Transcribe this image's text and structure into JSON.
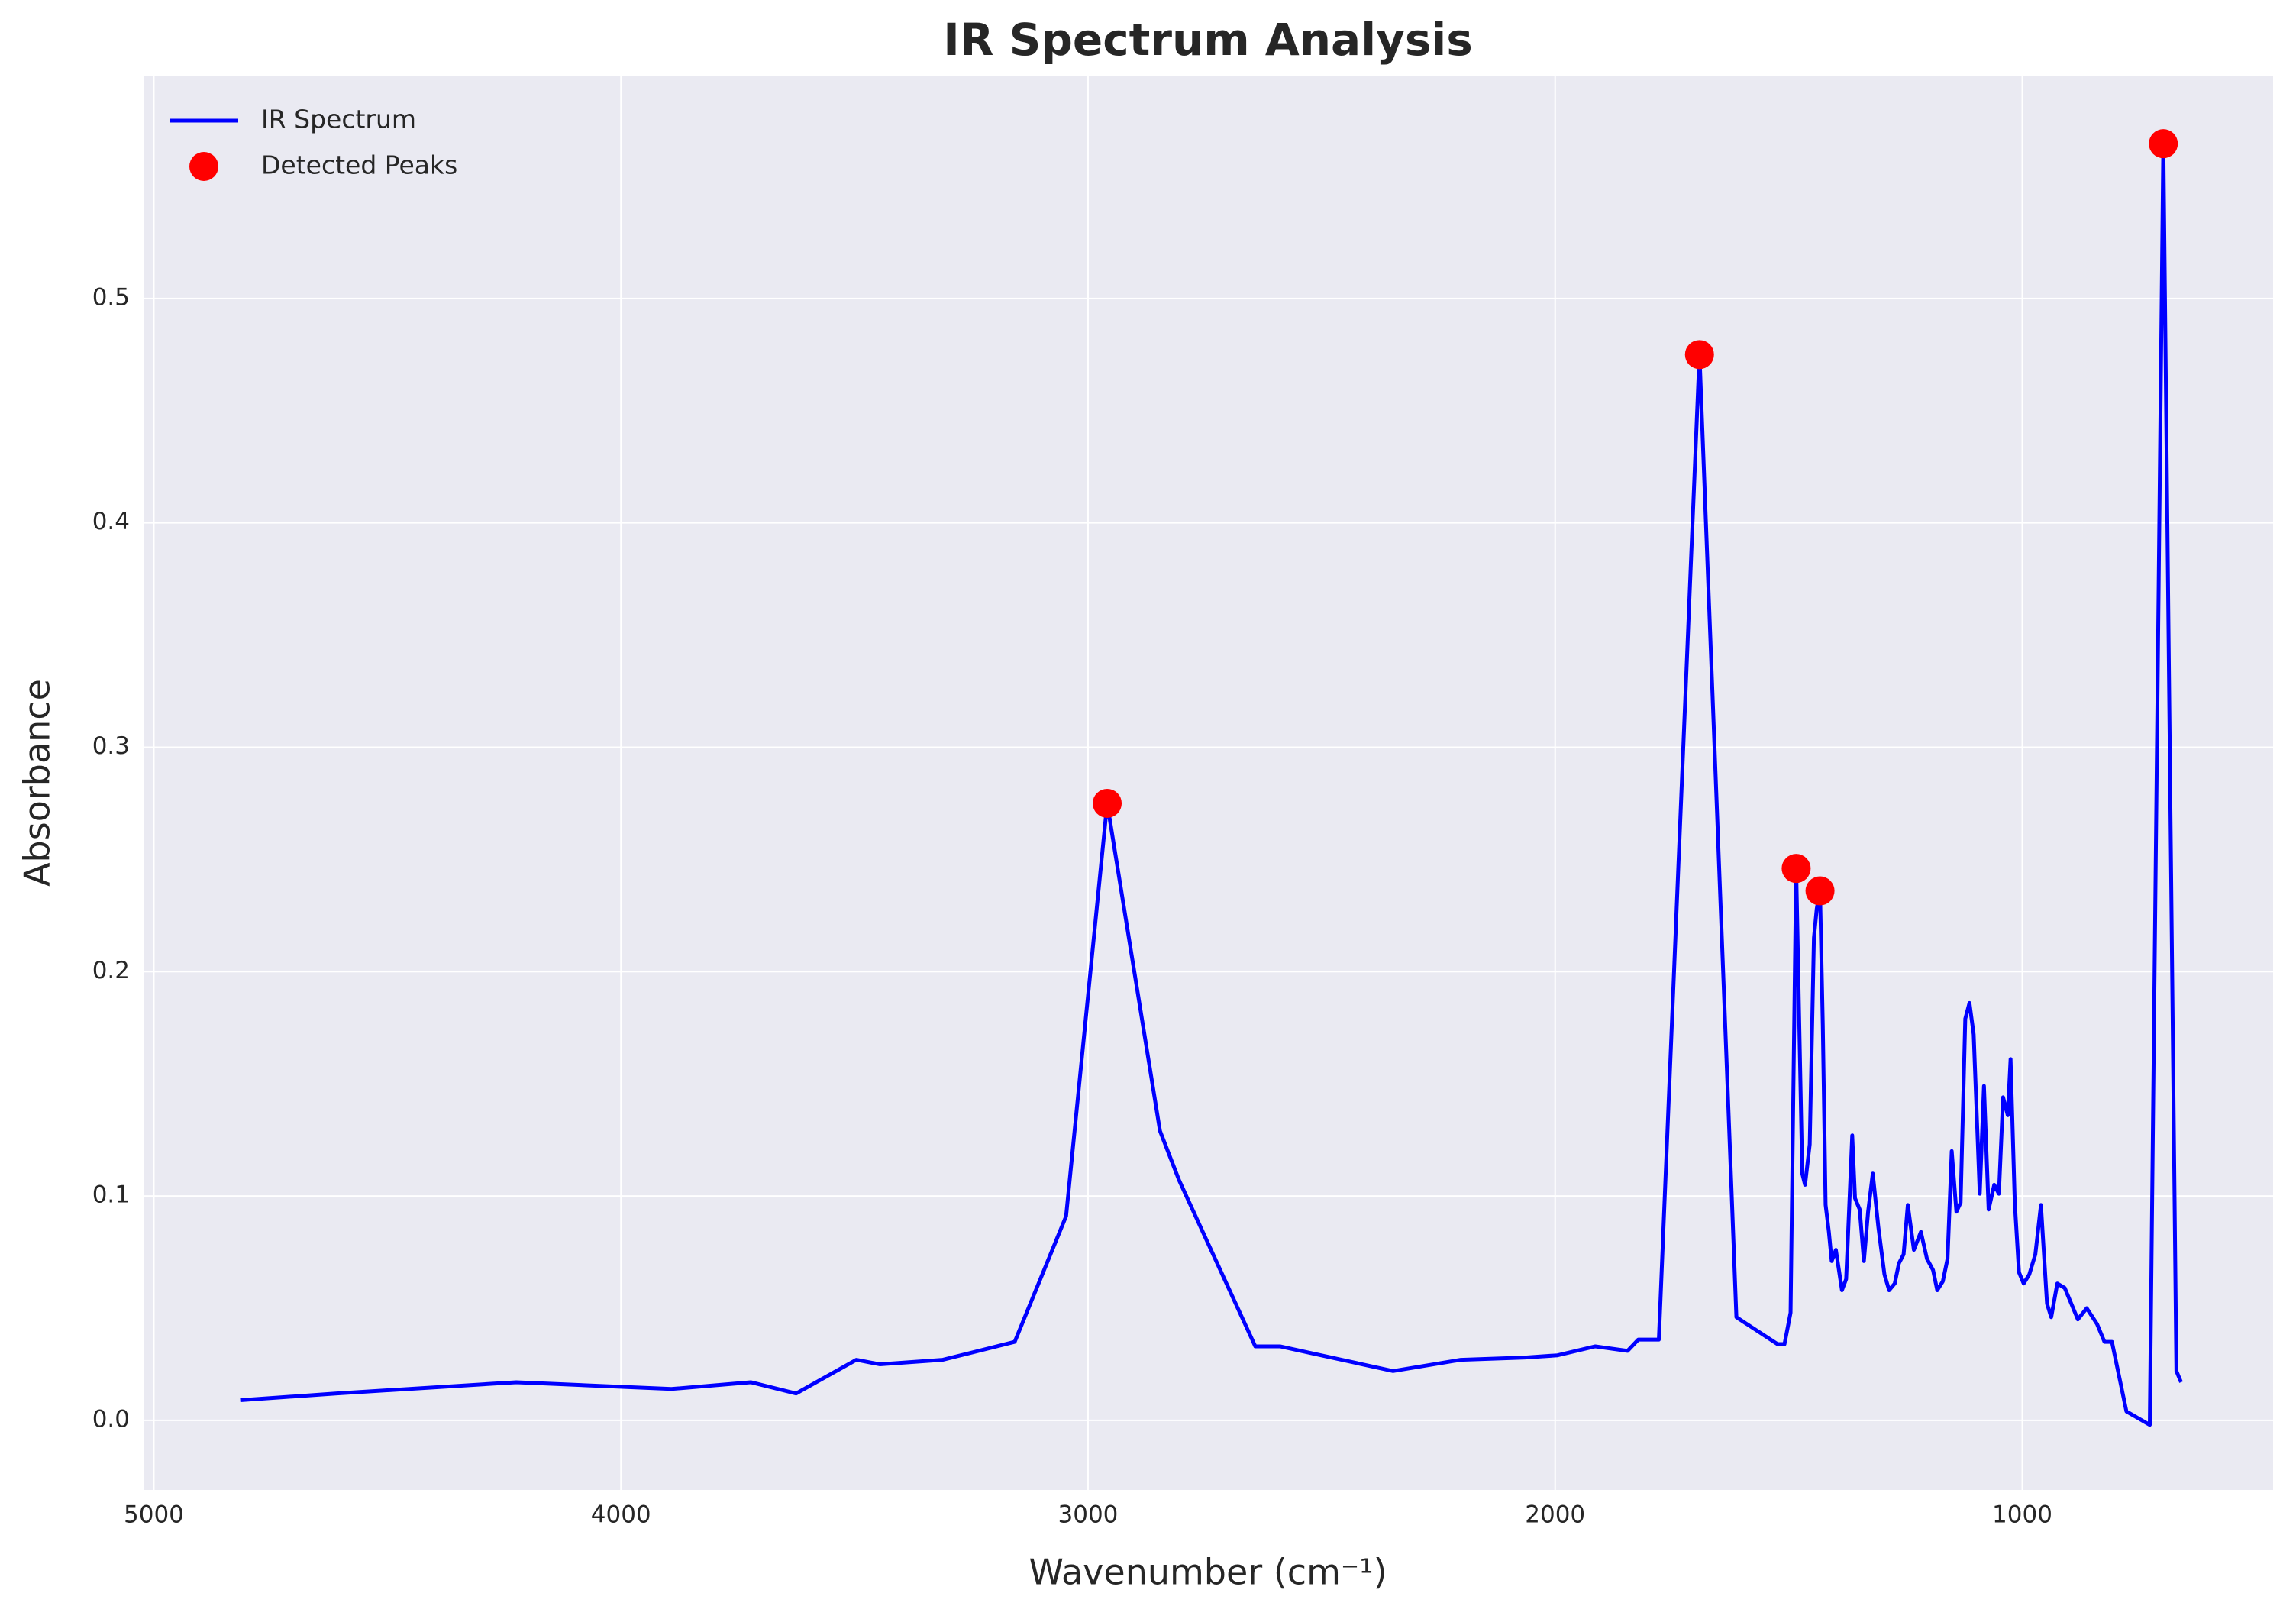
{
  "chart_data": {
    "type": "line",
    "title": "IR Spectrum Analysis",
    "x_label": "Wavenumber (cm⁻¹)",
    "y_label": "Absorbance",
    "xlim": [
      5022,
      463
    ],
    "ylim": [
      -0.031,
      0.599
    ],
    "xticks": [
      5000,
      4000,
      3000,
      2000,
      1000
    ],
    "yticks": [
      {
        "value": 0,
        "label": "0.0"
      },
      0.1,
      0.2,
      0.3,
      0.4,
      0.5
    ],
    "grid": true,
    "legend": "upper left",
    "series": [
      {
        "name": "IR Spectrum",
        "color": "#0000ff",
        "kind": "line",
        "x": [
          4815,
          4608,
          4224,
          3892,
          3722,
          3625,
          3496,
          3446,
          3311,
          3157,
          3047,
          2959,
          2846,
          2805,
          2642,
          2589,
          2347,
          2202,
          2064,
          1995,
          1914,
          1845,
          1822,
          1778,
          1691,
          1612,
          1524,
          1509,
          1496,
          1484,
          1471,
          1465,
          1455,
          1446,
          1440,
          1433,
          1427,
          1421,
          1414,
          1408,
          1399,
          1386,
          1377,
          1364,
          1358,
          1348,
          1339,
          1330,
          1320,
          1308,
          1295,
          1285,
          1273,
          1264,
          1254,
          1245,
          1232,
          1217,
          1204,
          1191,
          1182,
          1170,
          1160,
          1151,
          1141,
          1132,
          1122,
          1113,
          1104,
          1091,
          1082,
          1072,
          1060,
          1050,
          1041,
          1031,
          1025,
          1016,
          1007,
          997,
          985,
          972,
          960,
          947,
          938,
          925,
          909,
          897,
          881,
          862,
          840,
          824,
          808,
          777,
          752,
          727,
          698,
          670,
          660
        ],
        "values": [
          0.009,
          0.012,
          0.017,
          0.014,
          0.017,
          0.012,
          0.027,
          0.025,
          0.027,
          0.035,
          0.091,
          0.275,
          0.129,
          0.107,
          0.033,
          0.033,
          0.022,
          0.027,
          0.028,
          0.029,
          0.033,
          0.031,
          0.036,
          0.036,
          0.475,
          0.046,
          0.034,
          0.034,
          0.048,
          0.246,
          0.11,
          0.105,
          0.123,
          0.215,
          0.228,
          0.236,
          0.176,
          0.096,
          0.084,
          0.071,
          0.076,
          0.058,
          0.063,
          0.127,
          0.099,
          0.094,
          0.071,
          0.093,
          0.11,
          0.086,
          0.065,
          0.058,
          0.061,
          0.07,
          0.074,
          0.096,
          0.076,
          0.084,
          0.072,
          0.067,
          0.058,
          0.062,
          0.072,
          0.12,
          0.093,
          0.097,
          0.179,
          0.186,
          0.172,
          0.101,
          0.149,
          0.094,
          0.105,
          0.101,
          0.144,
          0.136,
          0.161,
          0.097,
          0.066,
          0.061,
          0.065,
          0.074,
          0.096,
          0.052,
          0.046,
          0.061,
          0.059,
          0.053,
          0.045,
          0.05,
          0.043,
          0.035,
          0.035,
          0.004,
          0.001,
          -0.002,
          0.569,
          0.022,
          0.017
        ]
      },
      {
        "name": "Detected Peaks",
        "color": "#ff0000",
        "kind": "scatter",
        "x": [
          2959,
          1691,
          1484,
          1433,
          698
        ],
        "values": [
          0.275,
          0.475,
          0.246,
          0.236,
          0.569
        ]
      }
    ]
  }
}
